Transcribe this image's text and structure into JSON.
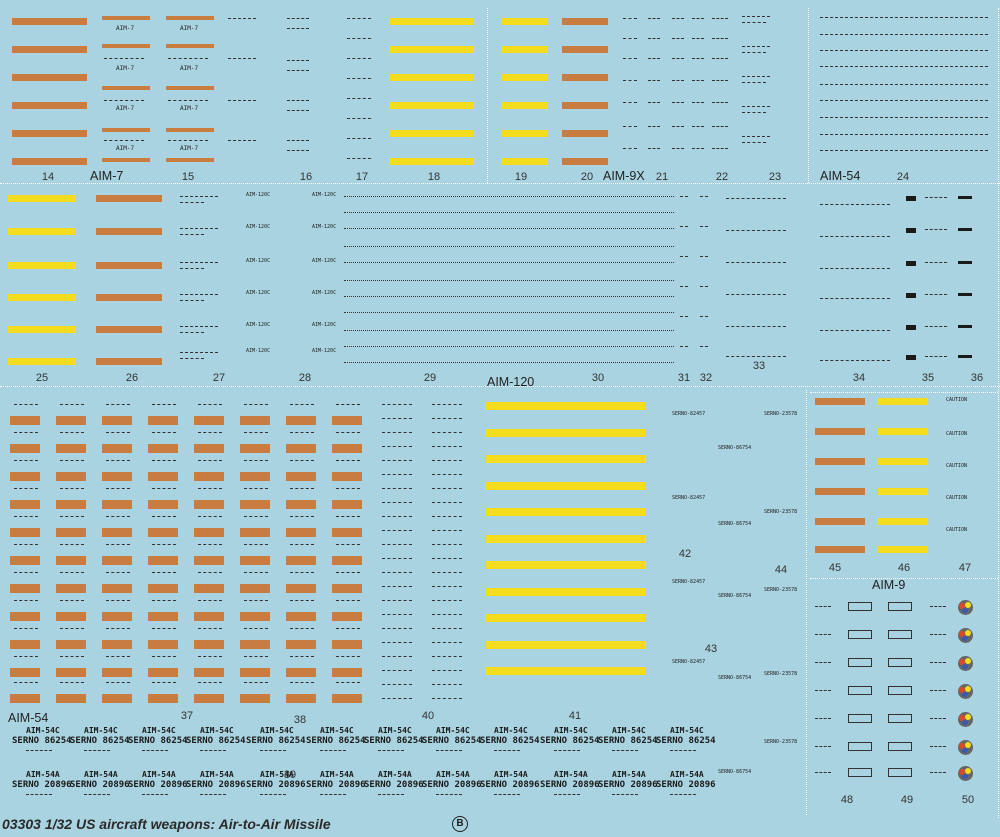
{
  "title": "03303 1/32  US aircraft weapons: Air-to-Air Missile",
  "sheet_mark": "B",
  "colors": {
    "background": "#a9d3e1",
    "orange": "#c87c40",
    "yellow": "#f4dc1f",
    "text": "#222222"
  },
  "section_labels": {
    "aim7": "AIM-7",
    "aim9x": "AIM-9X",
    "aim54_top": "AIM-54",
    "aim120": "AIM-120",
    "aim54_bottom": "AIM-54",
    "aim9": "AIM-9"
  },
  "numbers": {
    "n14": "14",
    "n15": "15",
    "n16": "16",
    "n17": "17",
    "n18": "18",
    "n19": "19",
    "n20": "20",
    "n21": "21",
    "n22": "22",
    "n23": "23",
    "n24": "24",
    "n25": "25",
    "n26": "26",
    "n27": "27",
    "n28": "28",
    "n29": "29",
    "n30": "30",
    "n31": "31",
    "n32": "32",
    "n33": "33",
    "n34": "34",
    "n35": "35",
    "n36": "36",
    "n37": "37",
    "n38": "38",
    "n39": "39",
    "n40": "40",
    "n41": "41",
    "n42": "42",
    "n43": "43",
    "n44": "44",
    "n45": "45",
    "n46": "46",
    "n47": "47",
    "n48": "48",
    "n49": "49",
    "n50": "50"
  },
  "decal_text": {
    "aim7_tag": "AIM-7",
    "aim120c": "AIM-120C",
    "aim54c": "AIM-54C",
    "aim54a": "AIM-54A",
    "serno_86254": "SERNO 86254",
    "serno_20896": "SERNO 20896",
    "caution": "CAUTION",
    "serno_82457": "SERNO-82457",
    "serno_86754": "SERNO-86754",
    "serno_23578": "SERNO-23578"
  }
}
